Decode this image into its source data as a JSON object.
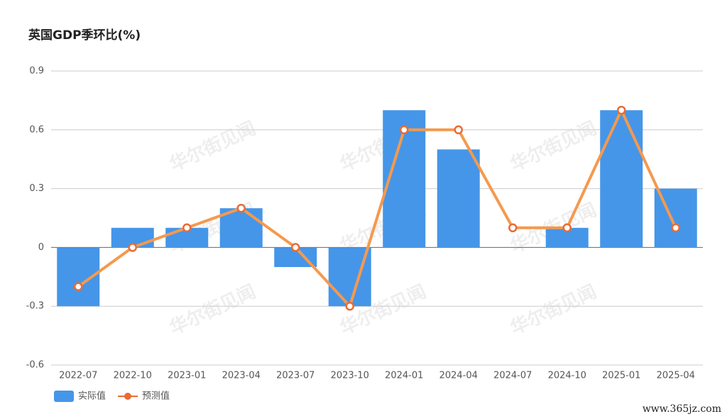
{
  "chart_data": {
    "type": "combo",
    "title": "英国GDP季环比(%)",
    "categories": [
      "2022-07",
      "2022-10",
      "2023-01",
      "2023-04",
      "2023-07",
      "2023-10",
      "2024-01",
      "2024-04",
      "2024-07",
      "2024-10",
      "2025-01",
      "2025-04"
    ],
    "series": [
      {
        "name": "实际值",
        "type": "bar",
        "color": "#4596e8",
        "values": [
          -0.3,
          0.1,
          0.1,
          0.2,
          -0.1,
          -0.3,
          0.7,
          0.5,
          0,
          0.1,
          0.7,
          0.3
        ]
      },
      {
        "name": "预测值",
        "type": "line",
        "color": "#f5994e",
        "values": [
          -0.2,
          0,
          0.1,
          0.2,
          0,
          -0.3,
          0.6,
          0.6,
          0.1,
          0.1,
          0.7,
          0.1
        ]
      }
    ],
    "ylim": [
      -0.6,
      0.9
    ],
    "yticks": [
      -0.6,
      -0.3,
      0,
      0.3,
      0.6,
      0.9
    ],
    "grid": true,
    "legend": "bottom-left",
    "watermark": "华尔街见闻",
    "source_text": "www.365jz.com"
  }
}
